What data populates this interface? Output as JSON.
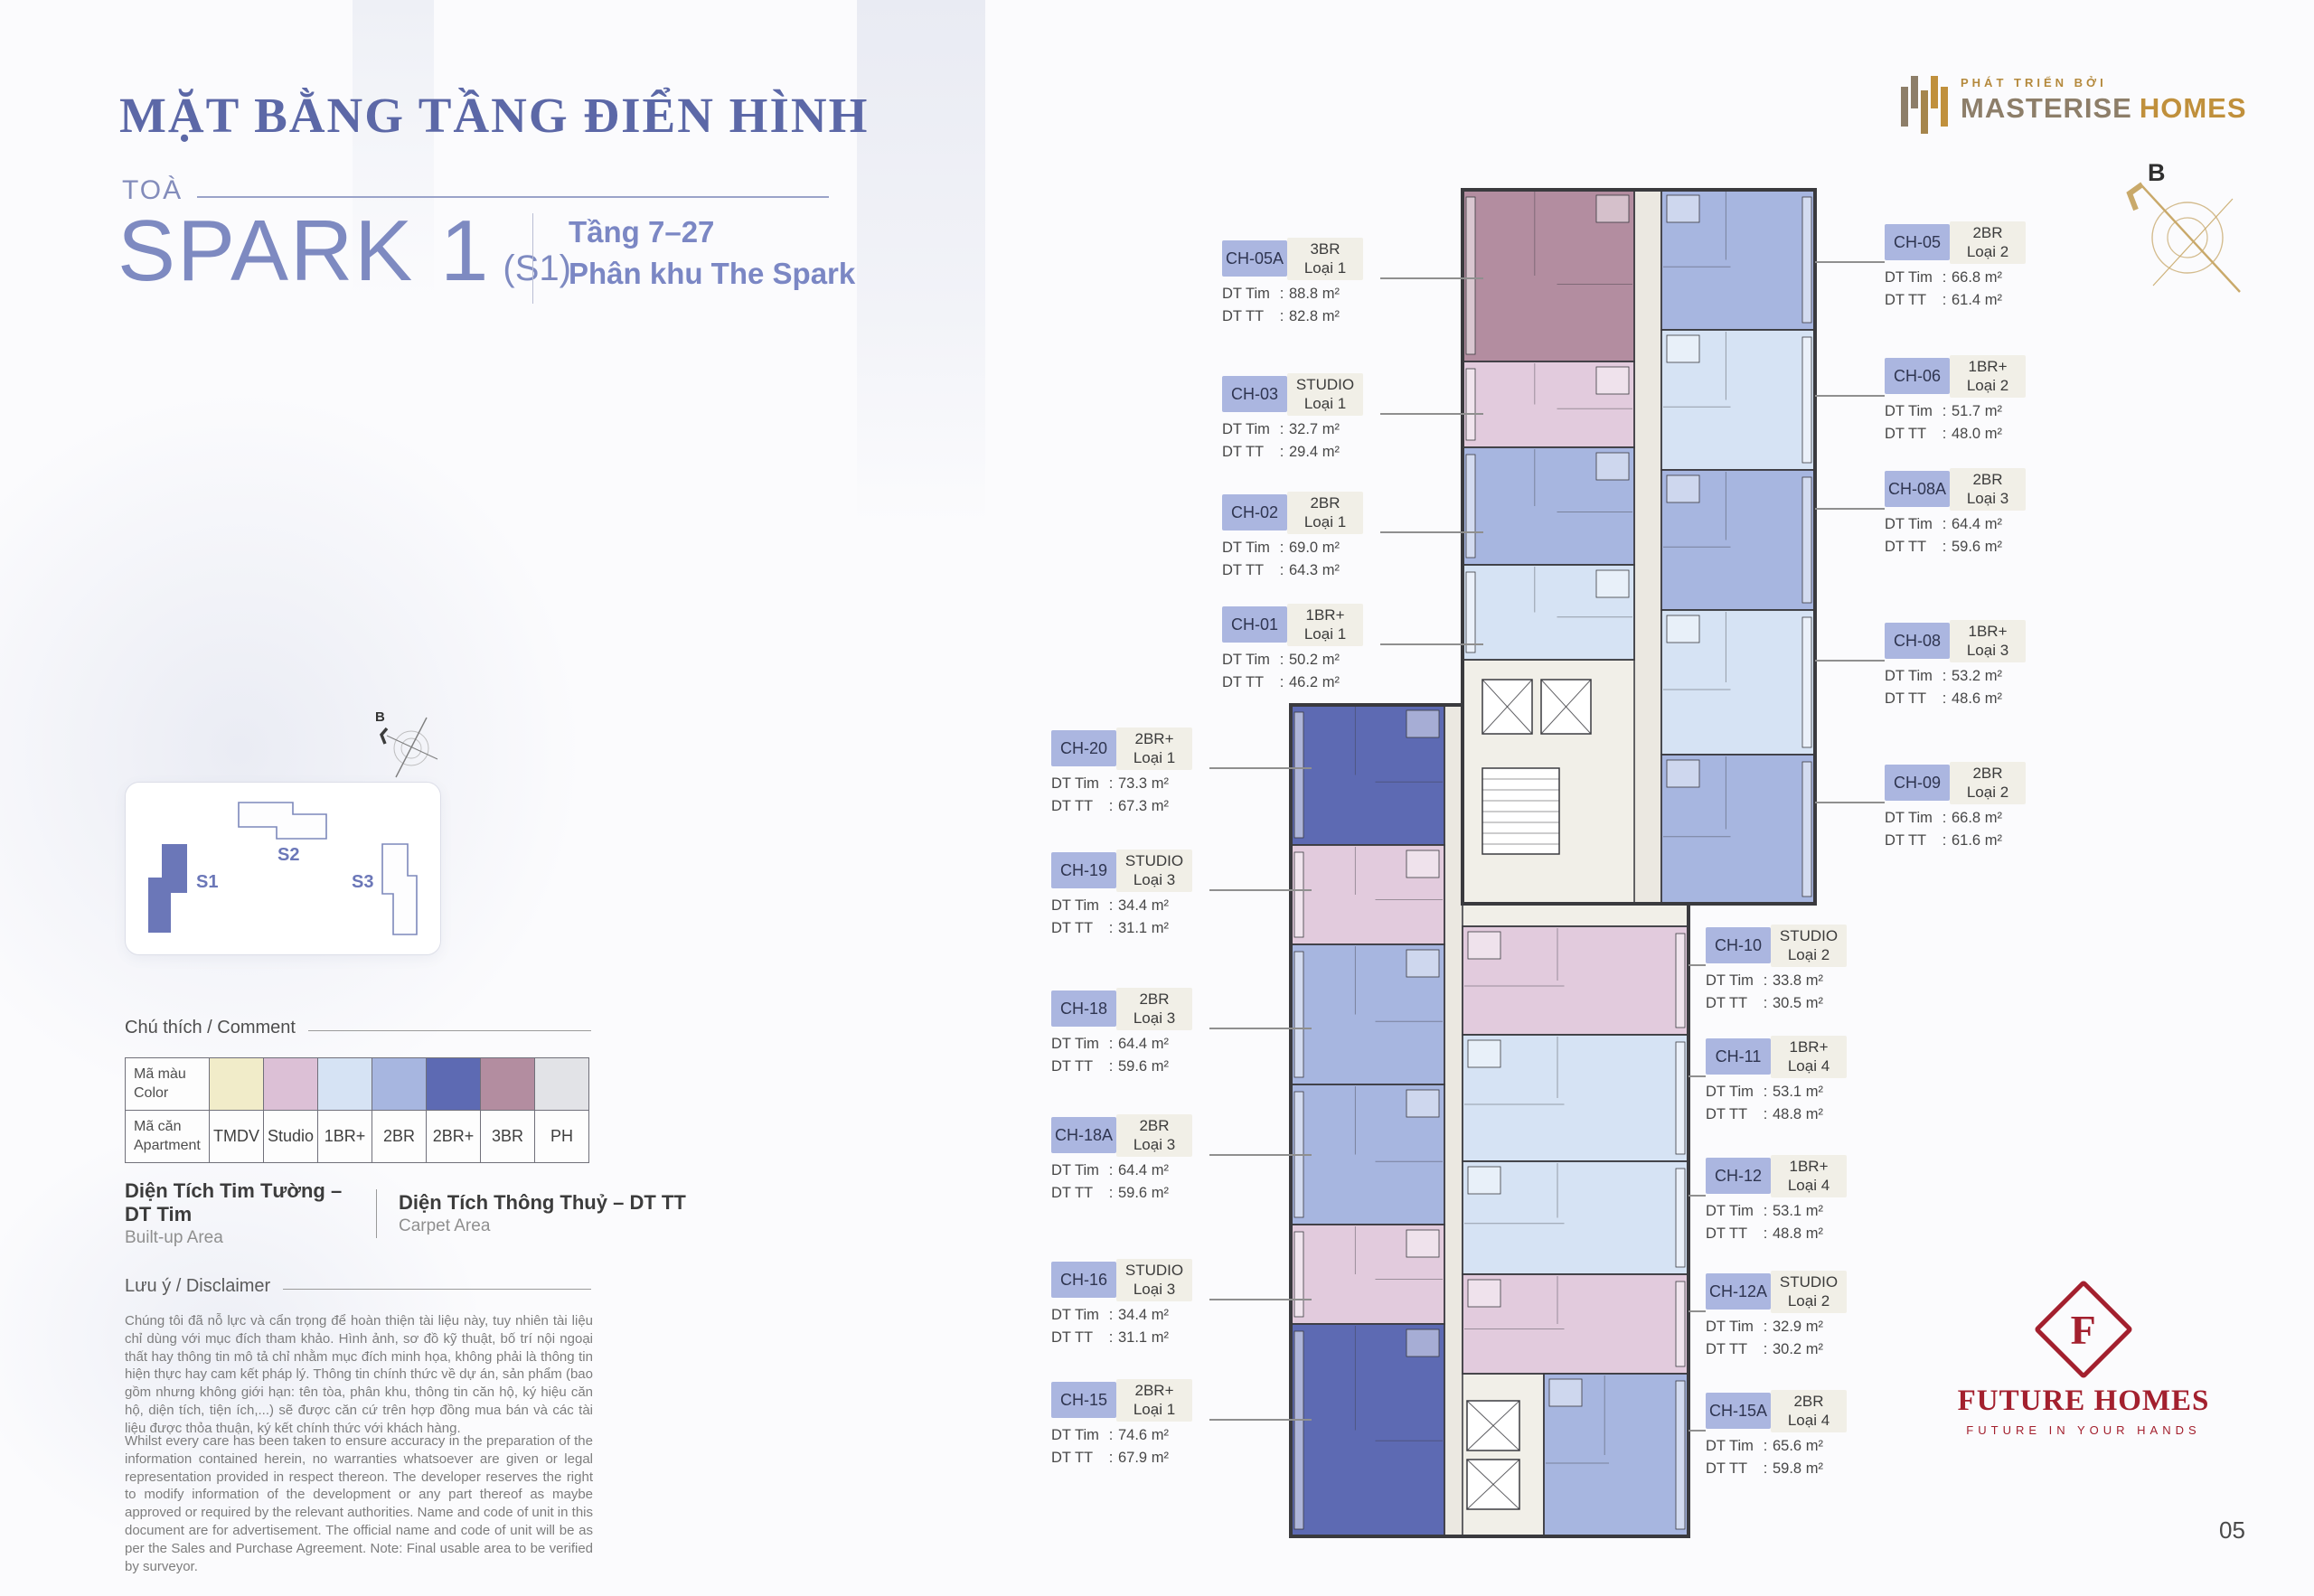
{
  "header": {
    "title": "MẶT BẰNG TẦNG ĐIỂN HÌNH",
    "building_label": "TOÀ",
    "building_name": "SPARK 1",
    "building_code": "(S1)",
    "floors": "Tầng 7–27",
    "zone": "Phân khu The Spark"
  },
  "developer_logo": {
    "tagline": "PHÁT TRIỂN BỞI",
    "name_primary": "MASTERISE",
    "name_secondary": "HOMES"
  },
  "compass": {
    "label": "B"
  },
  "site_plan": {
    "buildings": [
      {
        "id": "S1",
        "highlighted": true
      },
      {
        "id": "S2",
        "highlighted": false
      },
      {
        "id": "S3",
        "highlighted": false
      }
    ],
    "highlight_color": "#6b77b8"
  },
  "legend": {
    "heading": "Chú thích / Comment",
    "rows": {
      "color": {
        "vi": "Mã màu",
        "en": "Color"
      },
      "apartment": {
        "vi": "Mã căn",
        "en": "Apartment"
      }
    },
    "types": [
      {
        "label": "TMDV",
        "color": "#f1ecc9"
      },
      {
        "label": "Studio",
        "color": "#dcc0d6"
      },
      {
        "label": "1BR+",
        "color": "#d6e3f4"
      },
      {
        "label": "2BR",
        "color": "#a7b6e0"
      },
      {
        "label": "2BR+",
        "color": "#5d6ab3"
      },
      {
        "label": "3BR",
        "color": "#b38da0"
      },
      {
        "label": "PH",
        "color": "#e2e3e7"
      }
    ]
  },
  "area_definitions": [
    {
      "vi": "Diện Tích Tim Tường – DT Tim",
      "en": "Built-up Area"
    },
    {
      "vi": "Diện Tích Thông Thuỷ – DT TT",
      "en": "Carpet Area"
    }
  ],
  "disclaimer": {
    "heading": "Lưu ý / Disclaimer",
    "paragraph_vi": "Chúng tôi đã nỗ lực và cẩn trọng để hoàn thiện tài liệu này, tuy nhiên tài liệu chỉ dùng với mục đích tham khảo. Hình ảnh, sơ đồ kỹ thuật, bố trí nội ngoại thất hay thông tin mô tả chỉ nhằm mục đích minh họa, không phải là thông tin hiện thực hay cam kết pháp lý. Thông tin chính thức về dự án, sản phẩm (bao gồm nhưng không giới hạn: tên tòa, phân khu, thông tin căn hộ, ký hiệu căn hộ, diện tích, tiện ích,...) sẽ được căn cứ trên hợp đồng mua bán và các tài liệu được thỏa thuận, ký kết chính thức với khách hàng.",
    "paragraph_en": "Whilst every care has been taken to ensure accuracy in the preparation of the information contained herein, no warranties whatsoever are given or legal representation provided in respect thereon. The developer reserves the right to modify information of the development or any part thereof as maybe approved or required by the relevant authorities. Name and code of unit in this document are for advertisement. The official name and code of unit will be as per the Sales and Purchase Agreement. Note: Final usable area to be verified by surveyor."
  },
  "dt_labels": {
    "tim": "DT Tim",
    "tt": "DT TT",
    "colon": ":"
  },
  "callouts": [
    {
      "code": "CH-05A",
      "type": "3BR",
      "variant": "Loại 1",
      "dt_tim": "88.8 m²",
      "dt_tt": "82.8 m²"
    },
    {
      "code": "CH-03",
      "type": "STUDIO",
      "variant": "Loại 1",
      "dt_tim": "32.7 m²",
      "dt_tt": "29.4 m²"
    },
    {
      "code": "CH-02",
      "type": "2BR",
      "variant": "Loại 1",
      "dt_tim": "69.0 m²",
      "dt_tt": "64.3 m²"
    },
    {
      "code": "CH-01",
      "type": "1BR+",
      "variant": "Loại 1",
      "dt_tim": "50.2 m²",
      "dt_tt": "46.2 m²"
    },
    {
      "code": "CH-20",
      "type": "2BR+",
      "variant": "Loại 1",
      "dt_tim": "73.3 m²",
      "dt_tt": "67.3 m²"
    },
    {
      "code": "CH-19",
      "type": "STUDIO",
      "variant": "Loại 3",
      "dt_tim": "34.4 m²",
      "dt_tt": "31.1 m²"
    },
    {
      "code": "CH-18",
      "type": "2BR",
      "variant": "Loại 3",
      "dt_tim": "64.4 m²",
      "dt_tt": "59.6 m²"
    },
    {
      "code": "CH-18A",
      "type": "2BR",
      "variant": "Loại 3",
      "dt_tim": "64.4 m²",
      "dt_tt": "59.6 m²"
    },
    {
      "code": "CH-16",
      "type": "STUDIO",
      "variant": "Loại 3",
      "dt_tim": "34.4 m²",
      "dt_tt": "31.1 m²"
    },
    {
      "code": "CH-15",
      "type": "2BR+",
      "variant": "Loại 1",
      "dt_tim": "74.6 m²",
      "dt_tt": "67.9 m²"
    },
    {
      "code": "CH-05",
      "type": "2BR",
      "variant": "Loại 2",
      "dt_tim": "66.8 m²",
      "dt_tt": "61.4 m²"
    },
    {
      "code": "CH-06",
      "type": "1BR+",
      "variant": "Loại 2",
      "dt_tim": "51.7 m²",
      "dt_tt": "48.0 m²"
    },
    {
      "code": "CH-08A",
      "type": "2BR",
      "variant": "Loại 3",
      "dt_tim": "64.4 m²",
      "dt_tt": "59.6 m²"
    },
    {
      "code": "CH-08",
      "type": "1BR+",
      "variant": "Loại 3",
      "dt_tim": "53.2 m²",
      "dt_tt": "48.6 m²"
    },
    {
      "code": "CH-09",
      "type": "2BR",
      "variant": "Loại 2",
      "dt_tim": "66.8 m²",
      "dt_tt": "61.6 m²"
    },
    {
      "code": "CH-10",
      "type": "STUDIO",
      "variant": "Loại 2",
      "dt_tim": "33.8 m²",
      "dt_tt": "30.5 m²"
    },
    {
      "code": "CH-11",
      "type": "1BR+",
      "variant": "Loại 4",
      "dt_tim": "53.1 m²",
      "dt_tt": "48.8 m²"
    },
    {
      "code": "CH-12",
      "type": "1BR+",
      "variant": "Loại 4",
      "dt_tim": "53.1 m²",
      "dt_tt": "48.8 m²"
    },
    {
      "code": "CH-12A",
      "type": "STUDIO",
      "variant": "Loại 2",
      "dt_tim": "32.9 m²",
      "dt_tt": "30.2 m²"
    },
    {
      "code": "CH-15A",
      "type": "2BR",
      "variant": "Loại 4",
      "dt_tim": "65.6 m²",
      "dt_tt": "59.8 m²"
    }
  ],
  "publisher_logo": {
    "monogram": "F",
    "name": "FUTURE HOMES",
    "tagline": "FUTURE IN YOUR HANDS",
    "color": "#a3202e"
  },
  "page_number": "05"
}
